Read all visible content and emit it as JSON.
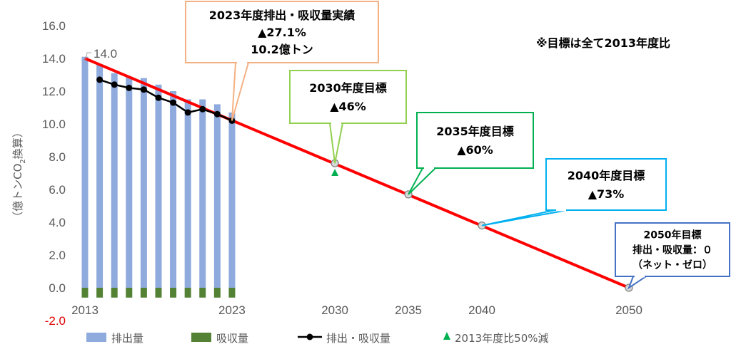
{
  "chart_data": {
    "type": "bar",
    "ylabel_parts": [
      "（億トンCO",
      "2",
      "換算）"
    ],
    "ylim": [
      -2.0,
      16.0
    ],
    "y_ticks": [
      {
        "v": 16.0,
        "label": "16.0"
      },
      {
        "v": 14.0,
        "label": "14.0"
      },
      {
        "v": 12.0,
        "label": "12.0"
      },
      {
        "v": 10.0,
        "label": "10.0"
      },
      {
        "v": 8.0,
        "label": "8.0"
      },
      {
        "v": 6.0,
        "label": "6.0"
      },
      {
        "v": 4.0,
        "label": "4.0"
      },
      {
        "v": 2.0,
        "label": "2.0"
      },
      {
        "v": 0.0,
        "label": "0.0"
      },
      {
        "v": -2.0,
        "label": "-2.0",
        "negative": true
      }
    ],
    "x_range": [
      2013,
      2050
    ],
    "x_ticks": [
      {
        "v": 2013,
        "label": "2013"
      },
      {
        "v": 2023,
        "label": "2023"
      },
      {
        "v": 2030,
        "label": "2030"
      },
      {
        "v": 2035,
        "label": "2035"
      },
      {
        "v": 2040,
        "label": "2040"
      },
      {
        "v": 2050,
        "label": "2050"
      }
    ],
    "series": [
      {
        "name": "排出量",
        "color": "#8faadc",
        "x": [
          2013,
          2014,
          2015,
          2016,
          2017,
          2018,
          2019,
          2020,
          2021,
          2022,
          2023
        ],
        "values": [
          14.1,
          13.6,
          13.1,
          12.9,
          12.8,
          12.4,
          12.0,
          11.5,
          11.5,
          11.2,
          10.7
        ]
      },
      {
        "name": "吸収量",
        "color": "#548235",
        "x": [
          2013,
          2014,
          2015,
          2016,
          2017,
          2018,
          2019,
          2020,
          2021,
          2022,
          2023
        ],
        "values": [
          -0.6,
          -0.6,
          -0.6,
          -0.6,
          -0.6,
          -0.6,
          -0.6,
          -0.6,
          -0.6,
          -0.6,
          -0.6
        ]
      },
      {
        "name": "排出・吸収量",
        "color": "#000000",
        "x": [
          2014,
          2015,
          2016,
          2017,
          2018,
          2019,
          2020,
          2021,
          2022,
          2023
        ],
        "values": [
          12.7,
          12.4,
          12.2,
          12.1,
          11.6,
          11.3,
          10.7,
          10.9,
          10.6,
          10.2
        ]
      },
      {
        "name": "2013年度比50%減",
        "color": "#00b050",
        "x": [
          2030
        ],
        "values": [
          7.0
        ]
      }
    ],
    "target_line": {
      "color": "#ff0000",
      "from": [
        2013,
        14.0
      ],
      "to": [
        2050,
        0.0
      ]
    },
    "target_points": [
      {
        "x": 2023,
        "y": 10.2
      },
      {
        "x": 2030,
        "y": 7.6
      },
      {
        "x": 2035,
        "y": 5.7
      },
      {
        "x": 2040,
        "y": 3.8
      },
      {
        "x": 2050,
        "y": 0.0
      }
    ],
    "start_label": {
      "x": 2013,
      "y": 14.0,
      "text": "14.0"
    },
    "note": "※目標は全て2013年度比",
    "annotations": [
      {
        "lines": [
          "2023年度排出・吸収量実績",
          "▲27.1%",
          "10.2億トン"
        ],
        "border": "#f4b183",
        "x": 2023,
        "y": 10.2
      },
      {
        "lines": [
          "2030年度目標",
          "▲46%"
        ],
        "border": "#92d050",
        "x": 2030,
        "y": 7.6
      },
      {
        "lines": [
          "2035年度目標",
          "▲60%"
        ],
        "border": "#00b050",
        "x": 2035,
        "y": 5.7
      },
      {
        "lines": [
          "2040年度目標",
          "▲73%"
        ],
        "border": "#00b0f0",
        "x": 2040,
        "y": 3.8
      },
      {
        "lines": [
          "2050年目標",
          "排出・吸収量：０",
          "（ネット・ゼロ）"
        ],
        "border": "#4472c4",
        "x": 2050,
        "y": 0.0
      }
    ],
    "legend_position": "bottom"
  }
}
